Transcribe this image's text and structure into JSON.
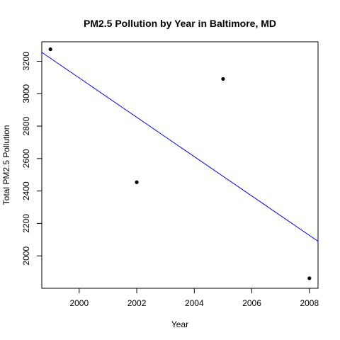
{
  "chart_data": {
    "type": "scatter",
    "title": "PM2.5 Pollution by Year in Baltimore, MD",
    "xlabel": "Year",
    "ylabel": "Total PM2.5 Pollution",
    "xlim": [
      1998.7,
      2008.3
    ],
    "ylim": [
      1800,
      3320
    ],
    "x_ticks": [
      2000,
      2002,
      2004,
      2006,
      2008
    ],
    "y_ticks": [
      2000,
      2200,
      2400,
      2600,
      2800,
      3000,
      3200
    ],
    "grid": false,
    "points": [
      {
        "x": 1999,
        "y": 3274
      },
      {
        "x": 2002,
        "y": 2454
      },
      {
        "x": 2005,
        "y": 3091
      },
      {
        "x": 2008,
        "y": 1862
      }
    ],
    "trendline": {
      "color": "#0000cc",
      "start": {
        "x": 1998.7,
        "y": 3255
      },
      "end": {
        "x": 2008.3,
        "y": 2090
      }
    },
    "point_color": "#000000"
  }
}
